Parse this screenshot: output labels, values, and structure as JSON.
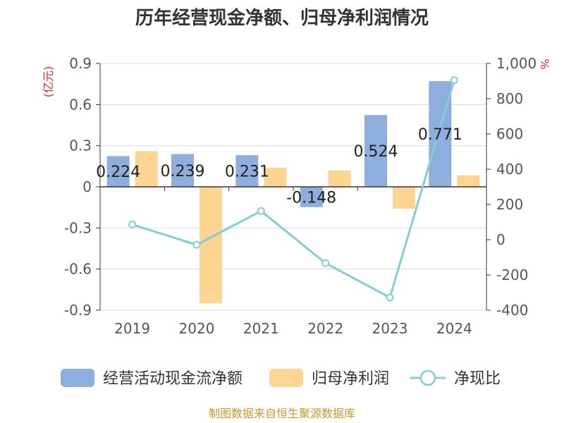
{
  "chart_data": {
    "type": "bar",
    "title": "历年经营现金净额、归母净利润情况",
    "categories": [
      "2019",
      "2020",
      "2021",
      "2022",
      "2023",
      "2024"
    ],
    "series": [
      {
        "name": "经营活动现金流净额",
        "kind": "bar",
        "axis": "left",
        "color": "#8eaedd",
        "values": [
          0.224,
          0.239,
          0.231,
          -0.148,
          0.524,
          0.771
        ],
        "labels": [
          "0.224",
          "0.239",
          "0.231",
          "-0.148",
          "0.524",
          "0.771"
        ]
      },
      {
        "name": "归母净利润",
        "kind": "bar",
        "axis": "left",
        "color": "#fdd593",
        "values": [
          0.26,
          -0.85,
          0.14,
          0.12,
          -0.16,
          0.085
        ]
      },
      {
        "name": "净现比",
        "kind": "line",
        "axis": "right",
        "color": "#86ccd4",
        "values": [
          86,
          -29,
          163,
          -133,
          -328,
          905
        ]
      }
    ],
    "y_left": {
      "unit": "(亿元)",
      "range": [
        -0.9,
        0.9
      ],
      "ticks": [
        "0.9",
        "0.6",
        "0.3",
        "0",
        "-0.3",
        "-0.6",
        "-0.9"
      ]
    },
    "y_right": {
      "unit": "%",
      "range": [
        -400,
        1000
      ],
      "ticks": [
        "1,000",
        "800",
        "600",
        "400",
        "200",
        "0",
        "-200",
        "-400"
      ]
    },
    "legend_position": "bottom",
    "grid": true
  },
  "source": "制图数据来自恒生聚源数据库"
}
